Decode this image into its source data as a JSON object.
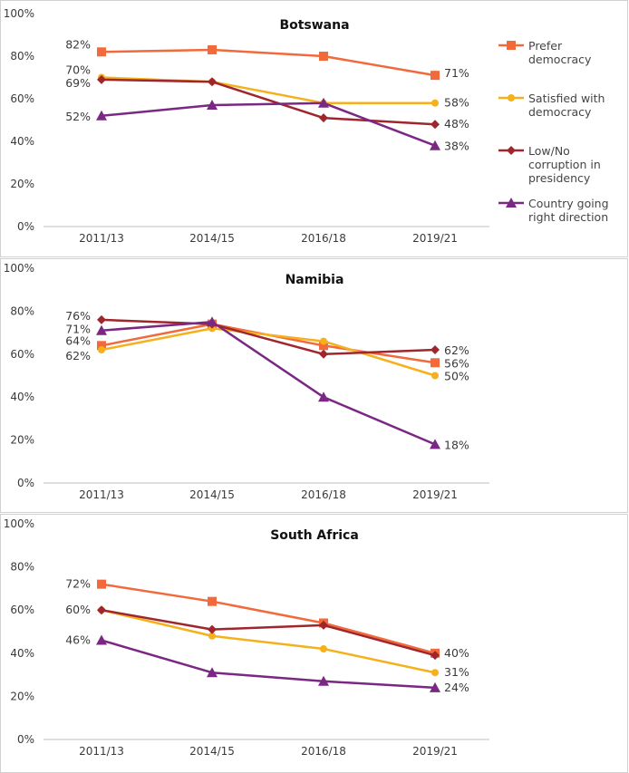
{
  "chart_data": [
    {
      "type": "line",
      "title": "Botswana",
      "categories": [
        "2011/13",
        "2014/15",
        "2016/18",
        "2019/21"
      ],
      "ylim": [
        0,
        100
      ],
      "y_ticks": [
        "0%",
        "20%",
        "40%",
        "60%",
        "80%",
        "100%"
      ],
      "grid": false,
      "series": [
        {
          "name": "Prefer democracy",
          "values": [
            82,
            83,
            80,
            71
          ],
          "color": "#f26a3b",
          "marker": "square",
          "labels": [
            "82%",
            "",
            "",
            "71%"
          ]
        },
        {
          "name": "Satisfied with democracy",
          "values": [
            70,
            68,
            58,
            58
          ],
          "color": "#f5b01b",
          "marker": "circle",
          "labels": [
            "70%",
            "",
            "",
            "58%"
          ]
        },
        {
          "name": "Low/No corruption in presidency",
          "values": [
            69,
            68,
            51,
            48
          ],
          "color": "#a0262e",
          "marker": "diamond",
          "labels": [
            "69%",
            "",
            "",
            "48%"
          ]
        },
        {
          "name": "Country going right direction",
          "values": [
            52,
            57,
            58,
            38
          ],
          "color": "#7a2883",
          "marker": "triangle",
          "labels": [
            "52%",
            "",
            "",
            "38%"
          ]
        }
      ]
    },
    {
      "type": "line",
      "title": "Namibia",
      "categories": [
        "2011/13",
        "2014/15",
        "2016/18",
        "2019/21"
      ],
      "ylim": [
        0,
        100
      ],
      "y_ticks": [
        "0%",
        "20%",
        "40%",
        "60%",
        "80%",
        "100%"
      ],
      "grid": false,
      "series": [
        {
          "name": "Prefer democracy",
          "values": [
            64,
            74,
            64,
            56
          ],
          "color": "#f26a3b",
          "marker": "square",
          "labels": [
            "64%",
            "",
            "",
            "56%"
          ]
        },
        {
          "name": "Satisfied with democracy",
          "values": [
            62,
            72,
            66,
            50
          ],
          "color": "#f5b01b",
          "marker": "circle",
          "labels": [
            "62%",
            "",
            "",
            "50%"
          ]
        },
        {
          "name": "Low/No corruption in presidency",
          "values": [
            76,
            74,
            60,
            62
          ],
          "color": "#a0262e",
          "marker": "diamond",
          "labels": [
            "76%",
            "",
            "",
            "62%"
          ]
        },
        {
          "name": "Country going right direction",
          "values": [
            71,
            75,
            40,
            18
          ],
          "color": "#7a2883",
          "marker": "triangle",
          "labels": [
            "71%",
            "",
            "",
            "18%"
          ]
        }
      ]
    },
    {
      "type": "line",
      "title": "South Africa",
      "categories": [
        "2011/13",
        "2014/15",
        "2016/18",
        "2019/21"
      ],
      "ylim": [
        0,
        100
      ],
      "y_ticks": [
        "0%",
        "20%",
        "40%",
        "60%",
        "80%",
        "100%"
      ],
      "grid": false,
      "series": [
        {
          "name": "Prefer democracy",
          "values": [
            72,
            64,
            54,
            40
          ],
          "color": "#f26a3b",
          "marker": "square",
          "labels": [
            "72%",
            "",
            "",
            "40%"
          ]
        },
        {
          "name": "Satisfied with democracy",
          "values": [
            60,
            48,
            42,
            31
          ],
          "color": "#f5b01b",
          "marker": "circle",
          "labels": [
            "",
            "",
            "",
            "31%"
          ]
        },
        {
          "name": "Low/No corruption in presidency",
          "values": [
            60,
            51,
            53,
            39
          ],
          "color": "#a0262e",
          "marker": "diamond",
          "labels": [
            "60%",
            "",
            "",
            ""
          ]
        },
        {
          "name": "Country going right direction",
          "values": [
            46,
            31,
            27,
            24
          ],
          "color": "#7a2883",
          "marker": "triangle",
          "labels": [
            "46%",
            "",
            "",
            "24%"
          ]
        }
      ]
    }
  ],
  "legend": {
    "placement": "right of top panel",
    "entries": [
      {
        "lines": [
          "Prefer",
          "democracy"
        ],
        "color": "#f26a3b",
        "marker": "square"
      },
      {
        "lines": [
          "Satisfied with",
          "democracy"
        ],
        "color": "#f5b01b",
        "marker": "circle"
      },
      {
        "lines": [
          "Low/No",
          "corruption in",
          "presidency"
        ],
        "color": "#a0262e",
        "marker": "diamond"
      },
      {
        "lines": [
          "Country going",
          "right direction"
        ],
        "color": "#7a2883",
        "marker": "triangle"
      }
    ]
  }
}
